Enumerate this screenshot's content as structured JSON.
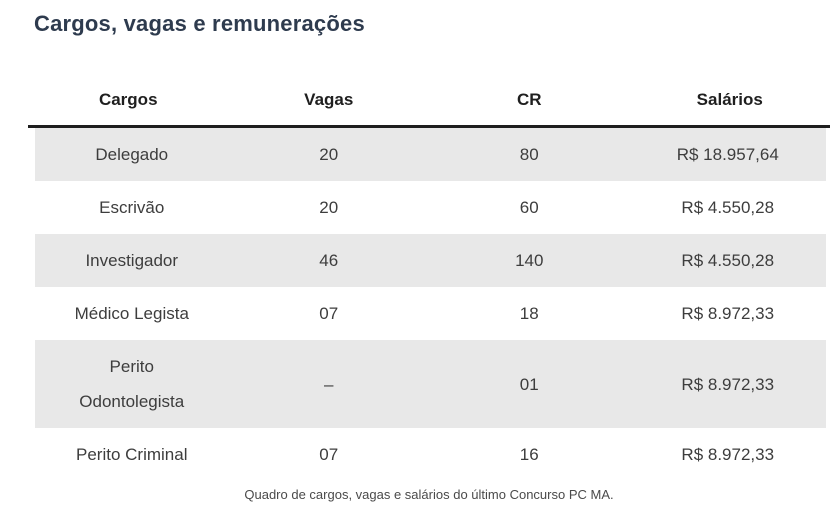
{
  "section": {
    "title": "Cargos, vagas e remunerações",
    "caption": "Quadro de cargos, vagas e salários do último Concurso PC MA."
  },
  "table": {
    "columns": [
      "Cargos",
      "Vagas",
      "CR",
      "Salários"
    ],
    "rows": [
      {
        "cargo": "Delegado",
        "vagas": "20",
        "cr": "80",
        "salario": "R$ 18.957,64"
      },
      {
        "cargo": "Escrivão",
        "vagas": "20",
        "cr": "60",
        "salario": "R$ 4.550,28"
      },
      {
        "cargo": "Investigador",
        "vagas": "46",
        "cr": "140",
        "salario": "R$ 4.550,28"
      },
      {
        "cargo": "Médico Legista",
        "vagas": "07",
        "cr": "18",
        "salario": "R$ 8.972,33"
      },
      {
        "cargo": "Perito Odontolegista",
        "vagas": "–",
        "cr": "01",
        "salario": "R$ 8.972,33"
      },
      {
        "cargo": "Perito Criminal",
        "vagas": "07",
        "cr": "16",
        "salario": "R$ 8.972,33"
      }
    ]
  },
  "colors": {
    "title_text": "#2e3b4e",
    "header_text": "#1f1f1f",
    "header_rule": "#1e1e1e",
    "cell_text": "#3d3d3d",
    "stripe_background": "#e8e8e8",
    "caption_text": "#4a4a4a",
    "page_background": "#ffffff"
  }
}
